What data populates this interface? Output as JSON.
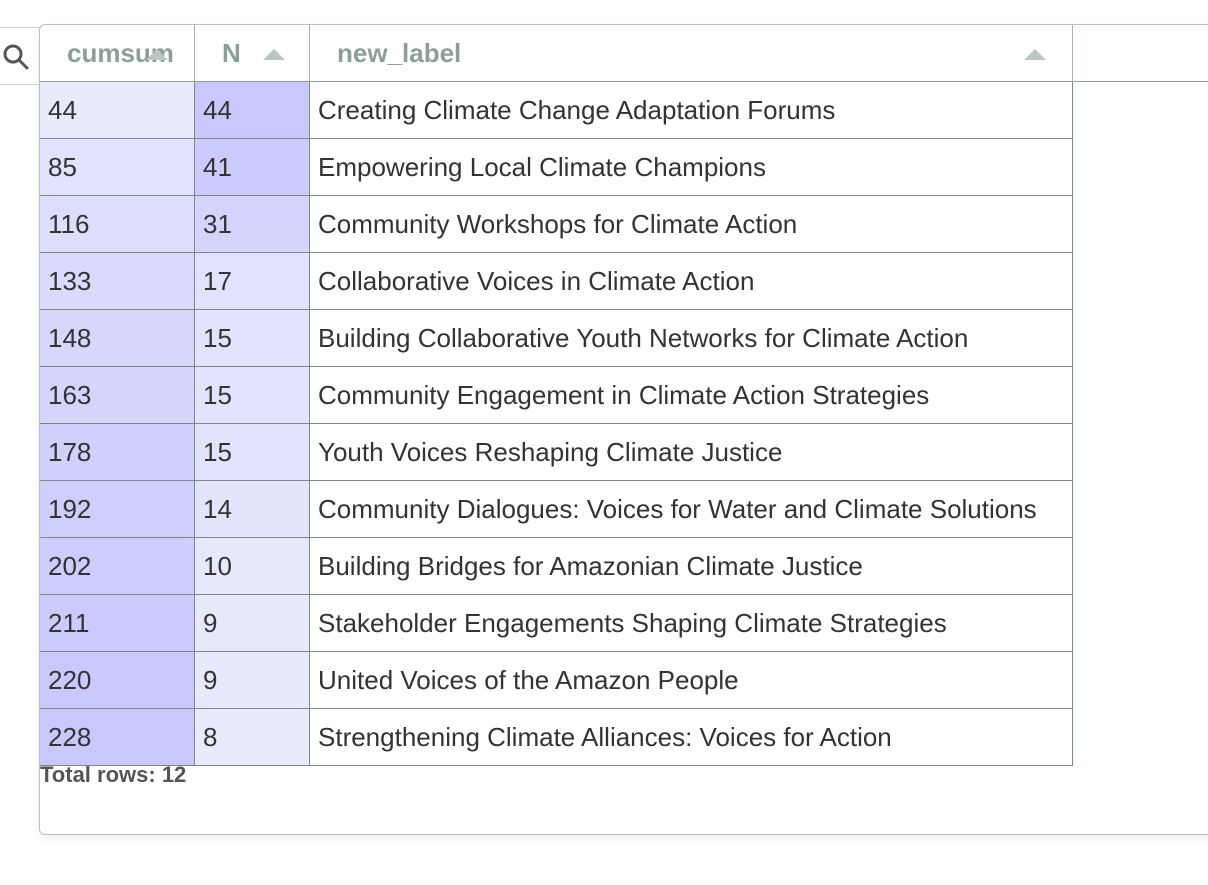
{
  "table": {
    "columns": [
      {
        "label": "cumsum"
      },
      {
        "label": "N"
      },
      {
        "label": "new_label"
      }
    ],
    "rows": [
      {
        "cumsum": "44",
        "n": "44",
        "label": "Creating Climate Change Adaptation Forums"
      },
      {
        "cumsum": "85",
        "n": "41",
        "label": "Empowering Local Climate Champions"
      },
      {
        "cumsum": "116",
        "n": "31",
        "label": "Community Workshops for Climate Action"
      },
      {
        "cumsum": "133",
        "n": "17",
        "label": "Collaborative Voices in Climate Action"
      },
      {
        "cumsum": "148",
        "n": "15",
        "label": "Building Collaborative Youth Networks for Climate Action"
      },
      {
        "cumsum": "163",
        "n": "15",
        "label": "Community Engagement in Climate Action Strategies"
      },
      {
        "cumsum": "178",
        "n": "15",
        "label": "Youth Voices Reshaping Climate Justice"
      },
      {
        "cumsum": "192",
        "n": "14",
        "label": "Community Dialogues: Voices for Water and Climate Solutions"
      },
      {
        "cumsum": "202",
        "n": "10",
        "label": "Building Bridges for Amazonian Climate Justice"
      },
      {
        "cumsum": "211",
        "n": "9",
        "label": "Stakeholder Engagements Shaping Climate Strategies"
      },
      {
        "cumsum": "220",
        "n": "9",
        "label": "United Voices of the Amazon People"
      },
      {
        "cumsum": "228",
        "n": "8",
        "label": "Strengthening Climate Alliances: Voices for Action"
      }
    ],
    "footer": "Total rows: 12"
  },
  "icons": {
    "search": "search-icon",
    "sort": "sort-ascending-icon"
  },
  "colors": {
    "header_text": "#8aa096",
    "bar_max": "#c8c8ff",
    "bar_min": "#eaeafd",
    "text": "#333333"
  }
}
